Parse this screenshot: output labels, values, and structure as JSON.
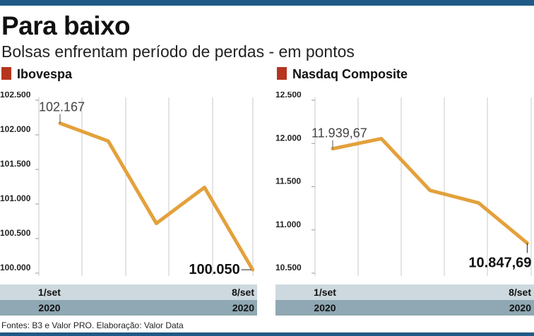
{
  "header": {
    "title": "Para baixo",
    "subtitle": "Bolsas enfrentam período de perdas - em pontos",
    "source": "Fontes: B3 e Valor PRO. Elaboração: Valor Data"
  },
  "colors": {
    "line": "#e3a13c",
    "marker": "#b5351f",
    "bar_light": "#cdd9df",
    "bar_dark": "#8fa8b3",
    "top_bar": "#1f5a86"
  },
  "chart_data": [
    {
      "type": "line",
      "title": "Ibovespa",
      "x": [
        0,
        1,
        2,
        3,
        4
      ],
      "values": [
        102167,
        101910,
        100720,
        101240,
        100050
      ],
      "ylim": [
        100000,
        102500
      ],
      "yticks": [
        100000,
        100500,
        101000,
        101500,
        102000,
        102500
      ],
      "ytick_labels": [
        "100.000",
        "100.500",
        "101.000",
        "101.500",
        "102.000",
        "102.500"
      ],
      "x_start_label": [
        "1/set",
        "2020"
      ],
      "x_end_label": [
        "8/set",
        "2020"
      ],
      "start_label": "102.167",
      "end_label": "100.050",
      "grid": true
    },
    {
      "type": "line",
      "title": "Nasdaq Composite",
      "x": [
        0,
        1,
        2,
        3,
        4
      ],
      "values": [
        11939.67,
        12056,
        11458,
        11313,
        10847.69
      ],
      "ylim": [
        10500,
        12500
      ],
      "yticks": [
        10500,
        11000,
        11500,
        12000,
        12500
      ],
      "ytick_labels": [
        "10.500",
        "11.000",
        "11.500",
        "12.000",
        "12.500"
      ],
      "x_start_label": [
        "1/set",
        "2020"
      ],
      "x_end_label": [
        "8/set",
        "2020"
      ],
      "start_label": "11.939,67",
      "end_label": "10.847,69",
      "grid": true
    }
  ]
}
